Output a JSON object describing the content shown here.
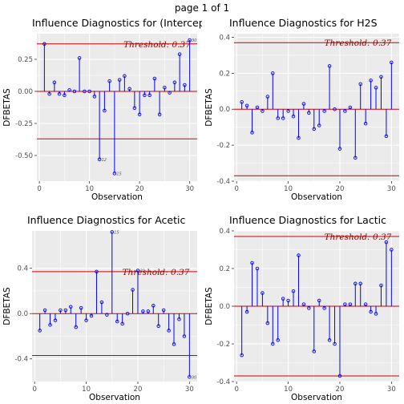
{
  "page_title": "page 1 of 1",
  "colors": {
    "panel_bg": "#ebebeb",
    "grid": "#ffffff",
    "stem": "#0000ff",
    "threshold_line": "#cc0000",
    "threshold_text": "#8b0000",
    "zero_line": "#cc0000"
  },
  "chart_data": [
    {
      "type": "scatter",
      "title": "Influence Diagnostics for (Intercept)",
      "xlabel": "Observation",
      "ylabel": "DFBETAS",
      "threshold": 0.37,
      "threshold_label": "Threshold: 0.37",
      "xlim": [
        -0.5,
        31.5
      ],
      "ylim": [
        -0.7,
        0.45
      ],
      "xticks": [
        0,
        10,
        20,
        30
      ],
      "yticks": [
        0.25,
        0.0,
        -0.25,
        -0.5
      ],
      "ytick_labels": [
        "0.25",
        "0.00",
        "-0.25",
        "-0.50"
      ],
      "x": [
        1,
        2,
        3,
        4,
        5,
        6,
        7,
        8,
        9,
        10,
        11,
        12,
        13,
        14,
        15,
        16,
        17,
        18,
        19,
        20,
        21,
        22,
        23,
        24,
        25,
        26,
        27,
        28,
        29,
        30
      ],
      "values": [
        0.37,
        -0.02,
        0.07,
        -0.02,
        -0.03,
        0.01,
        0.0,
        0.26,
        0.0,
        0.0,
        -0.04,
        -0.53,
        -0.15,
        0.08,
        -0.64,
        0.09,
        0.12,
        0.02,
        -0.13,
        -0.18,
        -0.03,
        -0.03,
        0.1,
        -0.18,
        0.03,
        -0.01,
        0.07,
        0.29,
        0.05,
        0.4
      ],
      "point_labels": [
        {
          "x": 12,
          "text": "12"
        },
        {
          "x": 15,
          "text": "15"
        },
        {
          "x": 30,
          "text": "30"
        }
      ]
    },
    {
      "type": "scatter",
      "title": "Influence Diagnostics for H2S",
      "xlabel": "Observation",
      "ylabel": "DFBETAS",
      "threshold": 0.37,
      "threshold_label": "Threshold: 0.37",
      "xlim": [
        -0.5,
        31.5
      ],
      "ylim": [
        -0.4,
        0.42
      ],
      "xticks": [
        0,
        10,
        20,
        30
      ],
      "yticks": [
        0.4,
        0.2,
        0.0,
        -0.2,
        -0.4
      ],
      "ytick_labels": [
        "0.4",
        "0.2",
        "0.0",
        "-0.2",
        "-0.4"
      ],
      "x": [
        1,
        2,
        3,
        4,
        5,
        6,
        7,
        8,
        9,
        10,
        11,
        12,
        13,
        14,
        15,
        16,
        17,
        18,
        19,
        20,
        21,
        22,
        23,
        24,
        25,
        26,
        27,
        28,
        29,
        30
      ],
      "values": [
        0.04,
        0.02,
        -0.13,
        0.01,
        -0.01,
        0.07,
        0.2,
        -0.05,
        -0.05,
        -0.01,
        -0.04,
        -0.16,
        0.03,
        -0.02,
        -0.11,
        -0.09,
        -0.01,
        0.24,
        0.0,
        -0.22,
        -0.01,
        0.01,
        -0.27,
        0.14,
        -0.08,
        0.16,
        0.12,
        0.18,
        -0.15,
        0.26
      ],
      "point_labels": []
    },
    {
      "type": "scatter",
      "title": "Influence Diagnostics for Acetic",
      "xlabel": "Observation",
      "ylabel": "DFBETAS",
      "threshold": 0.37,
      "threshold_label": "Threshold: 0.37",
      "xlim": [
        -0.5,
        31.5
      ],
      "ylim": [
        -0.6,
        0.73
      ],
      "xticks": [
        0,
        10,
        20,
        30
      ],
      "yticks": [
        0.4,
        0.0,
        -0.4
      ],
      "ytick_labels": [
        "0.4",
        "0.0",
        "-0.4"
      ],
      "x": [
        1,
        2,
        3,
        4,
        5,
        6,
        7,
        8,
        9,
        10,
        11,
        12,
        13,
        14,
        15,
        16,
        17,
        18,
        19,
        20,
        21,
        22,
        23,
        24,
        25,
        26,
        27,
        28,
        29,
        30
      ],
      "values": [
        -0.15,
        0.03,
        -0.1,
        -0.06,
        0.03,
        0.03,
        0.06,
        -0.12,
        0.05,
        -0.06,
        -0.02,
        0.37,
        0.1,
        -0.01,
        0.72,
        -0.07,
        -0.09,
        0.0,
        0.21,
        0.38,
        0.02,
        0.02,
        0.07,
        -0.11,
        0.03,
        -0.15,
        -0.27,
        -0.05,
        -0.2,
        -0.56
      ],
      "point_labels": [
        {
          "x": 15,
          "text": "15"
        },
        {
          "x": 20,
          "text": "20"
        },
        {
          "x": 30,
          "text": "30"
        }
      ]
    },
    {
      "type": "scatter",
      "title": "Influence Diagnostics for Lactic",
      "xlabel": "Observation",
      "ylabel": "DFBETAS",
      "threshold": 0.37,
      "threshold_label": "Threshold: 0.37",
      "xlim": [
        -0.5,
        31.5
      ],
      "ylim": [
        -0.4,
        0.4
      ],
      "xticks": [
        0,
        10,
        20,
        30
      ],
      "yticks": [
        0.4,
        0.2,
        0.0,
        -0.2,
        -0.4
      ],
      "ytick_labels": [
        "0.4",
        "0.2",
        "0.0",
        "-0.2",
        "-0.4"
      ],
      "x": [
        1,
        2,
        3,
        4,
        5,
        6,
        7,
        8,
        9,
        10,
        11,
        12,
        13,
        14,
        15,
        16,
        17,
        18,
        19,
        20,
        21,
        22,
        23,
        24,
        25,
        26,
        27,
        28,
        29,
        30
      ],
      "values": [
        -0.26,
        -0.03,
        0.23,
        0.2,
        0.07,
        -0.09,
        -0.2,
        -0.18,
        0.04,
        0.03,
        0.08,
        0.27,
        0.01,
        -0.01,
        -0.24,
        0.03,
        -0.01,
        -0.18,
        -0.2,
        -0.37,
        0.01,
        0.01,
        0.12,
        0.12,
        0.01,
        -0.03,
        -0.04,
        0.11,
        0.34,
        0.3
      ],
      "point_labels": []
    }
  ]
}
